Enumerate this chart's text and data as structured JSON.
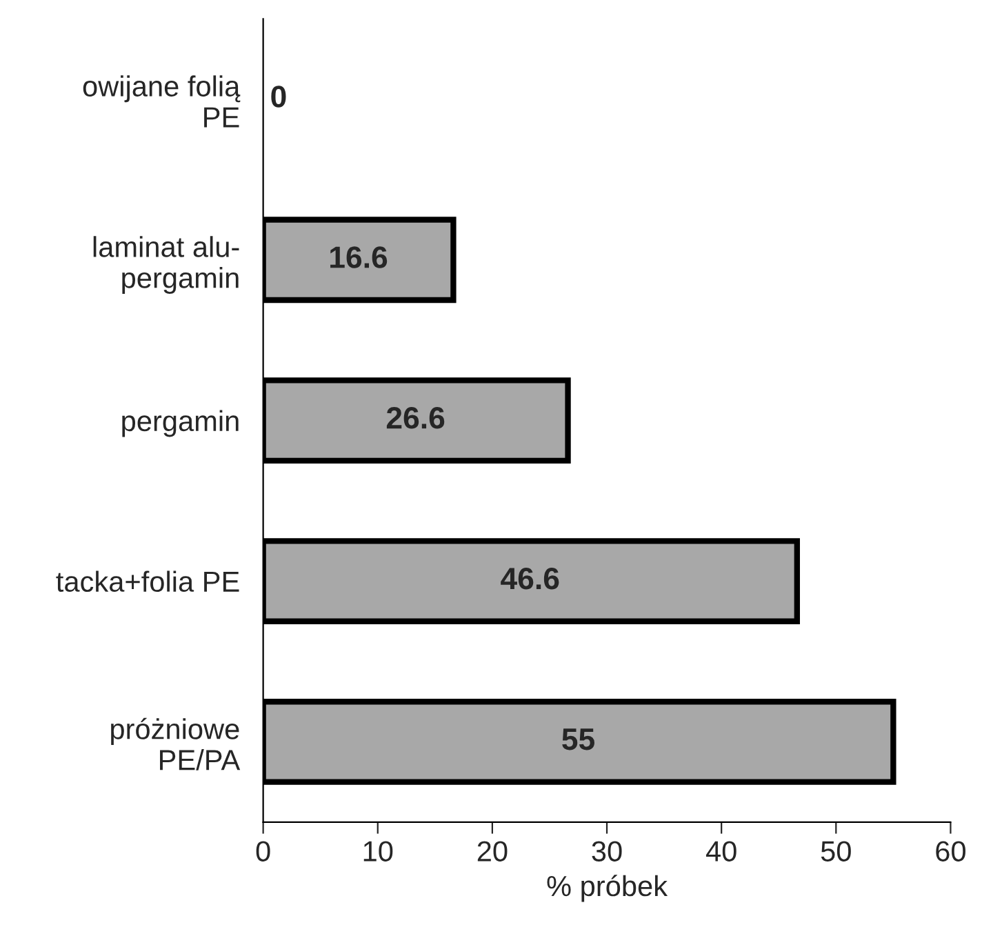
{
  "chart_data": {
    "type": "bar",
    "orientation": "horizontal",
    "categories": [
      "owijane folią\nPE",
      "laminat alu-\npergamin",
      "pergamin",
      "tacka+folia PE",
      "próżniowe\nPE/PA"
    ],
    "values": [
      0,
      16.6,
      26.6,
      46.6,
      55
    ],
    "color": "#a8a8a8",
    "xlabel": "% próbek",
    "xlim": [
      0,
      60
    ],
    "xticks": [
      0,
      10,
      20,
      30,
      40,
      50,
      60
    ],
    "data_labels": true,
    "grid": false,
    "legend": false
  }
}
